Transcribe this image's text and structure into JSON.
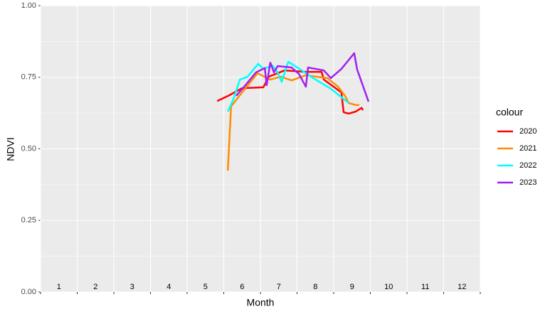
{
  "chart_data": {
    "type": "line",
    "x_label": "Month",
    "y_label": "NDVI",
    "legend_title": "colour",
    "xlim": [
      0.5,
      12.5
    ],
    "xticks": [
      0.5,
      1.5,
      2.5,
      3.5,
      4.5,
      5.5,
      6.5,
      7.5,
      8.5,
      9.5,
      10.5,
      11.5,
      12.5
    ],
    "month_labels": [
      1,
      2,
      3,
      4,
      5,
      6,
      7,
      8,
      9,
      10,
      11,
      12
    ],
    "ylim": [
      0,
      1
    ],
    "yticks": [
      {
        "value": 0,
        "label": "0.00"
      },
      {
        "value": 0.25,
        "label": "0.25"
      },
      {
        "value": 0.5,
        "label": "0.50"
      },
      {
        "value": 0.75,
        "label": "0.75"
      },
      {
        "value": 1,
        "label": "1.00"
      }
    ],
    "grid": true,
    "legend": "right",
    "series": [
      {
        "name": "2020",
        "color": "#ff0000",
        "x": [
          5.32,
          5.65,
          6.0,
          6.58,
          6.73,
          7.16,
          7.74,
          8.17,
          8.23,
          8.71,
          8.77,
          8.91,
          9.1,
          9.26,
          9.3
        ],
        "values": [
          0.667,
          0.687,
          0.712,
          0.715,
          0.752,
          0.774,
          0.769,
          0.769,
          0.742,
          0.697,
          0.628,
          0.623,
          0.63,
          0.643,
          0.635
        ]
      },
      {
        "name": "2021",
        "color": "#ff8c00",
        "x": [
          5.61,
          5.7,
          6.0,
          6.42,
          6.77,
          7.06,
          7.35,
          7.74,
          8.33,
          8.62,
          8.81,
          8.91,
          9.1,
          9.2
        ],
        "values": [
          0.424,
          0.648,
          0.697,
          0.764,
          0.742,
          0.752,
          0.739,
          0.757,
          0.747,
          0.717,
          0.685,
          0.66,
          0.653,
          0.653
        ]
      },
      {
        "name": "2022",
        "color": "#00ffff",
        "x": [
          5.61,
          5.76,
          5.94,
          6.15,
          6.44,
          6.58,
          6.83,
          6.97,
          7.08,
          7.26,
          7.51,
          7.94,
          8.42,
          8.91
        ],
        "values": [
          0.63,
          0.672,
          0.742,
          0.752,
          0.797,
          0.779,
          0.791,
          0.767,
          0.734,
          0.804,
          0.784,
          0.747,
          0.71,
          0.66
        ]
      },
      {
        "name": "2023",
        "color": "#a020f0",
        "x": [
          5.84,
          6.09,
          6.38,
          6.62,
          6.67,
          6.77,
          6.87,
          6.97,
          7.35,
          7.55,
          7.74,
          7.8,
          8.23,
          8.42,
          8.71,
          9.06,
          9.14,
          9.45
        ],
        "values": [
          0.685,
          0.722,
          0.767,
          0.782,
          0.722,
          0.801,
          0.767,
          0.789,
          0.784,
          0.762,
          0.717,
          0.784,
          0.774,
          0.747,
          0.779,
          0.834,
          0.777,
          0.665
        ]
      }
    ]
  }
}
